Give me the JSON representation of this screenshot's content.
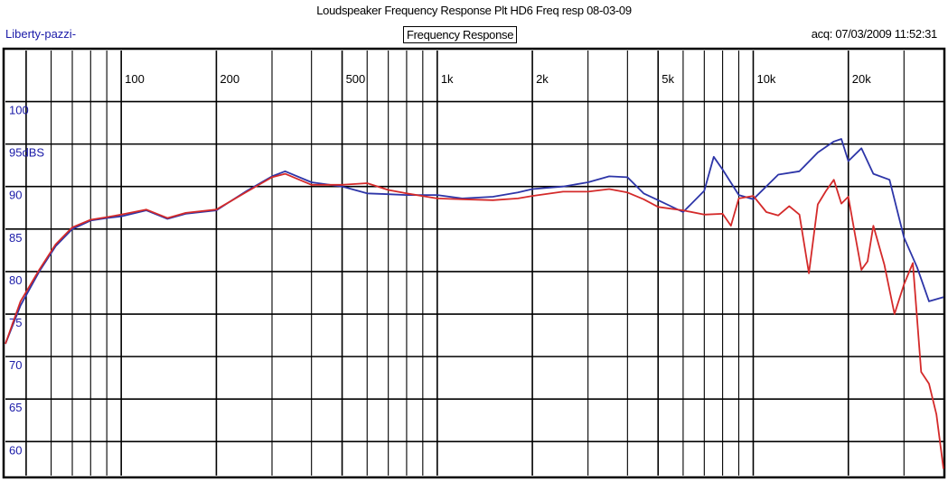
{
  "header": {
    "title": "Loudspeaker Frequency Response Plt HD6 Freq resp 08-03-09",
    "left_label": "Liberty-pazzi-",
    "center_label": "Frequency Response",
    "right_label": "acq: 07/03/2009 11:52:31"
  },
  "colors": {
    "series_blue": "#2d35a8",
    "series_red": "#d42a2a",
    "grid": "#000000"
  },
  "chart_data": {
    "type": "line",
    "title": "Loudspeaker Frequency Response Plt HD6 Freq resp 08-03-09",
    "xscale": "log",
    "xlim": [
      43,
      40000
    ],
    "ylim": [
      56,
      106
    ],
    "xticks": [
      {
        "value": 100,
        "label": "100"
      },
      {
        "value": 200,
        "label": "200"
      },
      {
        "value": 500,
        "label": "500"
      },
      {
        "value": 1000,
        "label": "1k"
      },
      {
        "value": 2000,
        "label": "2k"
      },
      {
        "value": 5000,
        "label": "5k"
      },
      {
        "value": 10000,
        "label": "10k"
      },
      {
        "value": 20000,
        "label": "20k"
      }
    ],
    "yticks": [
      {
        "value": 100,
        "label": "100"
      },
      {
        "value": 95,
        "label": "95dBS"
      },
      {
        "value": 90,
        "label": "90"
      },
      {
        "value": 85,
        "label": "85"
      },
      {
        "value": 80,
        "label": "80"
      },
      {
        "value": 75,
        "label": "75"
      },
      {
        "value": 70,
        "label": "70"
      },
      {
        "value": 65,
        "label": "65"
      },
      {
        "value": 60,
        "label": "60"
      }
    ],
    "grid": true,
    "series": [
      {
        "x": [
          43,
          48,
          55,
          62,
          70,
          80,
          90,
          100,
          120,
          140,
          160,
          200,
          250,
          300,
          330,
          400,
          500,
          600,
          700,
          800,
          1000,
          1200,
          1500,
          1800,
          2000,
          2500,
          3000,
          3500,
          4000,
          4500,
          5000,
          6000,
          7000,
          7500,
          8000,
          9000,
          10000,
          12000,
          14000,
          16000,
          18000,
          19000,
          20000,
          22000,
          24000,
          27000,
          30000,
          33000,
          36000,
          40000
        ],
        "y": [
          71.5,
          76,
          80,
          83,
          85,
          86,
          86.3,
          86.5,
          87.2,
          86.2,
          86.8,
          87.2,
          89.5,
          91.2,
          91.8,
          90.5,
          90,
          89.2,
          89.1,
          89,
          89,
          88.6,
          88.8,
          89.3,
          89.7,
          90,
          90.5,
          91.2,
          91.1,
          89.2,
          88.4,
          87,
          89.5,
          93.5,
          92,
          89,
          88.5,
          91.4,
          91.8,
          94,
          95.3,
          95.6,
          93,
          94.5,
          91.5,
          90.8,
          84,
          80.5,
          76.5,
          77
        ]
      },
      {
        "x": [
          43,
          48,
          55,
          62,
          70,
          80,
          90,
          100,
          120,
          140,
          160,
          200,
          250,
          300,
          330,
          400,
          500,
          600,
          700,
          800,
          1000,
          1200,
          1500,
          1800,
          2000,
          2500,
          3000,
          3500,
          4000,
          4500,
          5000,
          6000,
          7000,
          8000,
          8500,
          9000,
          10000,
          11000,
          12000,
          13000,
          14000,
          15000,
          16000,
          17000,
          18000,
          19000,
          20000,
          21000,
          22000,
          23000,
          24000,
          26000,
          28000,
          30000,
          32000,
          34000,
          36000,
          38000,
          40000
        ],
        "y": [
          71.5,
          76.5,
          80.2,
          83.2,
          85.2,
          86.1,
          86.4,
          86.7,
          87.3,
          86.3,
          86.9,
          87.3,
          89.4,
          91.1,
          91.5,
          90.2,
          90.2,
          90.4,
          89.6,
          89.2,
          88.6,
          88.5,
          88.4,
          88.6,
          88.9,
          89.4,
          89.4,
          89.7,
          89.3,
          88.5,
          87.6,
          87.2,
          86.7,
          86.8,
          85.4,
          88.6,
          88.9,
          87,
          86.6,
          87.7,
          86.7,
          79.8,
          87.9,
          89.5,
          90.8,
          88,
          88.8,
          84.3,
          80.2,
          81.2,
          85.4,
          80.8,
          75,
          78.5,
          81,
          68.2,
          66.8,
          63.2,
          56.8
        ]
      }
    ]
  }
}
